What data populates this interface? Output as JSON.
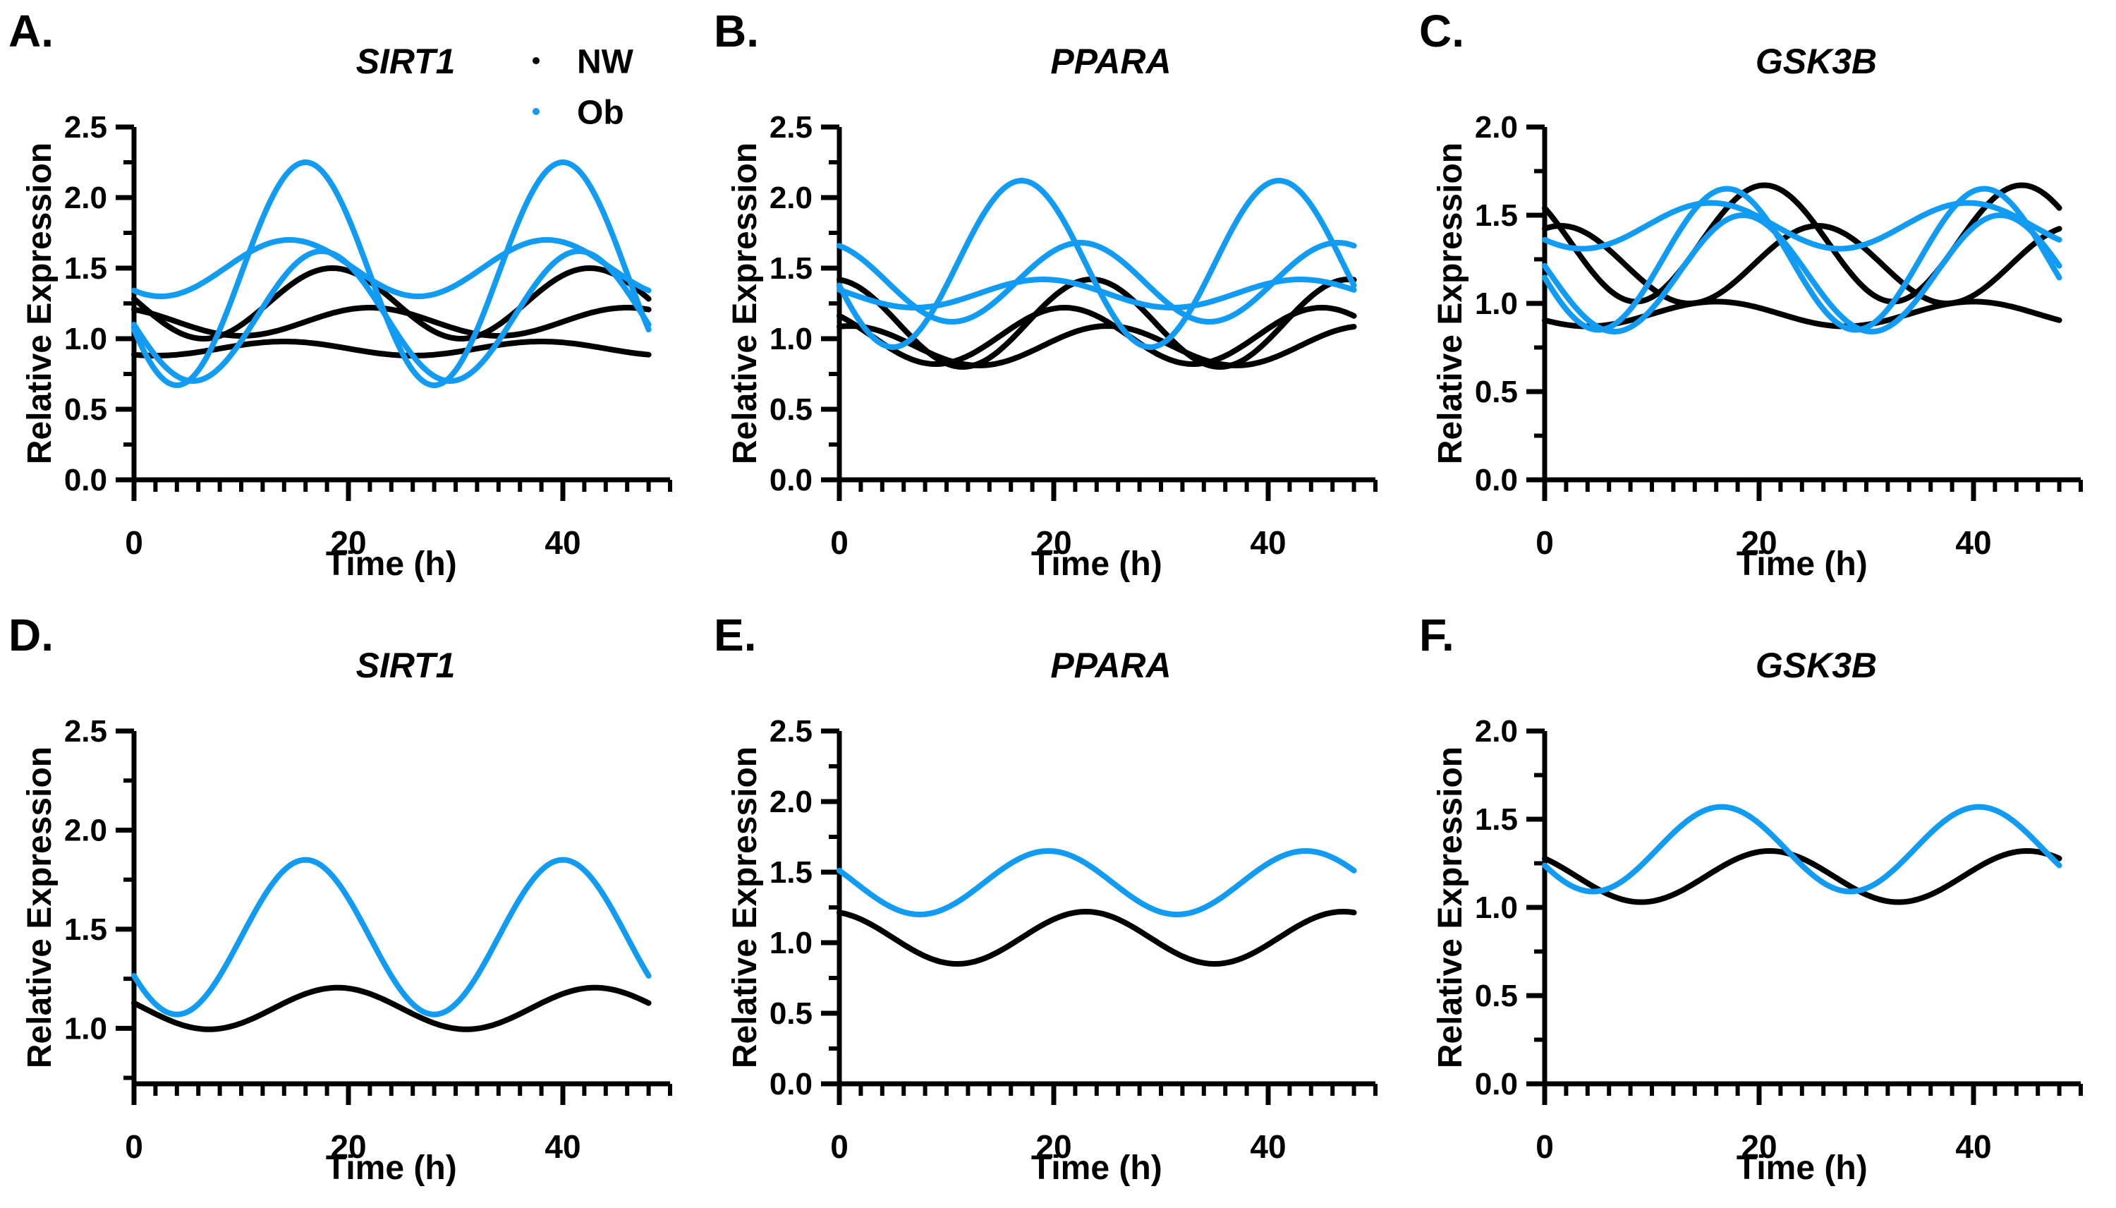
{
  "figure": {
    "background": "#ffffff",
    "description": "Six-panel cosinor fit figure of circadian gene expression",
    "nw_color": "#000000",
    "ob_color": "#119BF2"
  },
  "legend": {
    "attached_to_panel": "A.",
    "items": [
      {
        "label": "NW",
        "color": "#000000",
        "marker": "dot-icon"
      },
      {
        "label": "Ob",
        "color": "#119BF2",
        "marker": "dot-icon"
      }
    ]
  },
  "chart_data": [
    {
      "panel_label": "A.",
      "title": "SIRT1",
      "type": "line",
      "xlabel": "Time (h)",
      "ylabel": "Relative Expression",
      "x": {
        "min": 0,
        "max": 48,
        "axis_max": 50,
        "major_ticks": [
          0,
          20,
          40
        ],
        "minor_step": 2
      },
      "y": {
        "min": 0,
        "max": 2.5,
        "major_ticks": [
          "0.0",
          "0.5",
          "1.0",
          "1.5",
          "2.0",
          "2.5"
        ]
      },
      "grid": false,
      "curve_model": "cosine",
      "period_h": 24,
      "series": [
        {
          "group": "NW",
          "color": "#000000",
          "mesor": 1.25,
          "amplitude": 0.25,
          "peak_h": 18.5
        },
        {
          "group": "NW",
          "color": "#000000",
          "mesor": 1.12,
          "amplitude": 0.1,
          "peak_h": 22.0
        },
        {
          "group": "NW",
          "color": "#000000",
          "mesor": 0.93,
          "amplitude": 0.05,
          "peak_h": 14.0
        },
        {
          "group": "Ob",
          "color": "#119BF2",
          "mesor": 1.46,
          "amplitude": 0.79,
          "peak_h": 16.0
        },
        {
          "group": "Ob",
          "color": "#119BF2",
          "mesor": 1.5,
          "amplitude": 0.2,
          "peak_h": 14.5
        },
        {
          "group": "Ob",
          "color": "#119BF2",
          "mesor": 1.16,
          "amplitude": 0.46,
          "peak_h": 17.5
        }
      ]
    },
    {
      "panel_label": "B.",
      "title": "PPARA",
      "type": "line",
      "xlabel": "Time (h)",
      "ylabel": "Relative Expression",
      "x": {
        "min": 0,
        "max": 48,
        "axis_max": 50,
        "major_ticks": [
          0,
          20,
          40
        ],
        "minor_step": 2
      },
      "y": {
        "min": 0,
        "max": 2.5,
        "major_ticks": [
          "0.0",
          "0.5",
          "1.0",
          "1.5",
          "2.0",
          "2.5"
        ]
      },
      "grid": false,
      "curve_model": "cosine",
      "period_h": 24,
      "series": [
        {
          "group": "NW",
          "color": "#000000",
          "mesor": 1.11,
          "amplitude": 0.31,
          "peak_h": 23.5
        },
        {
          "group": "NW",
          "color": "#000000",
          "mesor": 1.02,
          "amplitude": 0.2,
          "peak_h": 21.0
        },
        {
          "group": "NW",
          "color": "#000000",
          "mesor": 0.95,
          "amplitude": 0.14,
          "peak_h": 25.0
        },
        {
          "group": "Ob",
          "color": "#119BF2",
          "mesor": 1.53,
          "amplitude": 0.59,
          "peak_h": 17.0
        },
        {
          "group": "Ob",
          "color": "#119BF2",
          "mesor": 1.4,
          "amplitude": 0.28,
          "peak_h": 22.5
        },
        {
          "group": "Ob",
          "color": "#119BF2",
          "mesor": 1.32,
          "amplitude": 0.1,
          "peak_h": 19.0
        }
      ]
    },
    {
      "panel_label": "C.",
      "title": "GSK3B",
      "type": "line",
      "xlabel": "Time (h)",
      "ylabel": "Relative Expression",
      "x": {
        "min": 0,
        "max": 48,
        "axis_max": 50,
        "major_ticks": [
          0,
          20,
          40
        ],
        "minor_step": 2
      },
      "y": {
        "min": 0,
        "max": 2.0,
        "major_ticks": [
          "0.0",
          "0.5",
          "1.0",
          "1.5",
          "2.0"
        ]
      },
      "grid": false,
      "curve_model": "cosine",
      "period_h": 24,
      "series": [
        {
          "group": "NW",
          "color": "#000000",
          "mesor": 1.34,
          "amplitude": 0.33,
          "peak_h": 20.5
        },
        {
          "group": "NW",
          "color": "#000000",
          "mesor": 1.22,
          "amplitude": 0.22,
          "peak_h": 25.5
        },
        {
          "group": "NW",
          "color": "#000000",
          "mesor": 0.94,
          "amplitude": 0.07,
          "peak_h": 16.0
        },
        {
          "group": "Ob",
          "color": "#119BF2",
          "mesor": 1.44,
          "amplitude": 0.13,
          "peak_h": 15.5
        },
        {
          "group": "Ob",
          "color": "#119BF2",
          "mesor": 1.25,
          "amplitude": 0.4,
          "peak_h": 17.0
        },
        {
          "group": "Ob",
          "color": "#119BF2",
          "mesor": 1.17,
          "amplitude": 0.33,
          "peak_h": 18.5
        }
      ]
    },
    {
      "panel_label": "D.",
      "title": "SIRT1",
      "type": "line",
      "xlabel": "Time (h)",
      "ylabel": "Relative Expression",
      "x": {
        "min": 0,
        "max": 48,
        "axis_max": 50,
        "major_ticks": [
          0,
          20,
          40
        ],
        "minor_step": 2
      },
      "y": {
        "min": 0.72,
        "max": 2.5,
        "major_ticks": [
          "1.0",
          "1.5",
          "2.0",
          "2.5"
        ]
      },
      "grid": false,
      "curve_model": "cosine",
      "period_h": 24,
      "series": [
        {
          "group": "NW",
          "color": "#000000",
          "mesor": 1.1,
          "amplitude": 0.105,
          "peak_h": 19.0
        },
        {
          "group": "Ob",
          "color": "#119BF2",
          "mesor": 1.46,
          "amplitude": 0.39,
          "peak_h": 16.0
        }
      ]
    },
    {
      "panel_label": "E.",
      "title": "PPARA",
      "type": "line",
      "xlabel": "Time (h)",
      "ylabel": "Relative Expression",
      "x": {
        "min": 0,
        "max": 48,
        "axis_max": 50,
        "major_ticks": [
          0,
          20,
          40
        ],
        "minor_step": 2
      },
      "y": {
        "min": 0,
        "max": 2.5,
        "major_ticks": [
          "0.0",
          "0.5",
          "1.0",
          "1.5",
          "2.0",
          "2.5"
        ]
      },
      "grid": false,
      "curve_model": "cosine",
      "period_h": 24,
      "series": [
        {
          "group": "NW",
          "color": "#000000",
          "mesor": 1.035,
          "amplitude": 0.185,
          "peak_h": 23.0
        },
        {
          "group": "Ob",
          "color": "#119BF2",
          "mesor": 1.425,
          "amplitude": 0.225,
          "peak_h": 19.5
        }
      ]
    },
    {
      "panel_label": "F.",
      "title": "GSK3B",
      "type": "line",
      "xlabel": "Time (h)",
      "ylabel": "Relative Expression",
      "x": {
        "min": 0,
        "max": 48,
        "axis_max": 50,
        "major_ticks": [
          0,
          20,
          40
        ],
        "minor_step": 2
      },
      "y": {
        "min": 0,
        "max": 2.0,
        "major_ticks": [
          "0.0",
          "0.5",
          "1.0",
          "1.5",
          "2.0"
        ]
      },
      "grid": false,
      "curve_model": "cosine",
      "period_h": 24,
      "series": [
        {
          "group": "NW",
          "color": "#000000",
          "mesor": 1.175,
          "amplitude": 0.145,
          "peak_h": 21.0
        },
        {
          "group": "Ob",
          "color": "#119BF2",
          "mesor": 1.33,
          "amplitude": 0.24,
          "peak_h": 16.5
        }
      ]
    }
  ]
}
